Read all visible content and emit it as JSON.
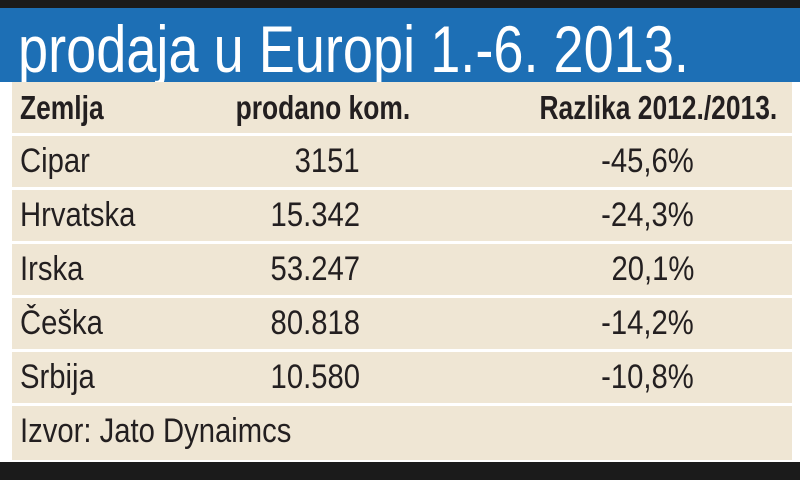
{
  "header": {
    "title": "prodaja u Europi 1.-6. 2013."
  },
  "table": {
    "columns": [
      "Zemlja",
      "prodano kom.",
      "Razlika 2012./2013."
    ],
    "rows": [
      [
        "Cipar",
        "3151",
        "-45,6%"
      ],
      [
        "Hrvatska",
        "15.342",
        "-24,3%"
      ],
      [
        "Irska",
        "53.247",
        "20,1%"
      ],
      [
        "Češka",
        "80.818",
        "-14,2%"
      ],
      [
        "Srbija",
        "10.580",
        "-10,8%"
      ]
    ]
  },
  "source": "Izvor: Jato Dynaimcs"
}
